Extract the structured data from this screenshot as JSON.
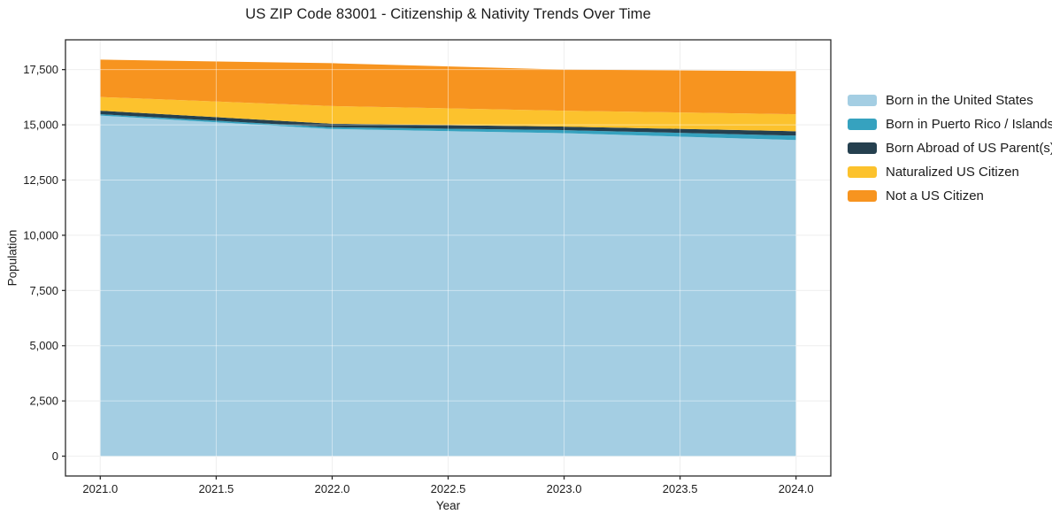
{
  "chart_data": {
    "type": "area",
    "stacked": true,
    "title": "US ZIP Code 83001 - Citizenship & Nativity Trends Over Time",
    "xlabel": "Year",
    "ylabel": "Population",
    "x": [
      2021,
      2022,
      2023,
      2024
    ],
    "series": [
      {
        "name": "Born in the United States",
        "color": "#a4cee3",
        "values": [
          15420,
          14810,
          14620,
          14310
        ]
      },
      {
        "name": "Born in Puerto Rico / Islands",
        "color": "#36a2bf",
        "values": [
          60,
          80,
          140,
          200
        ]
      },
      {
        "name": "Born Abroad of US Parent(s)",
        "color": "#25404f",
        "values": [
          160,
          160,
          160,
          200
        ]
      },
      {
        "name": "Naturalized US Citizen",
        "color": "#fcc22d",
        "values": [
          620,
          800,
          720,
          770
        ]
      },
      {
        "name": "Not a US Citizen",
        "color": "#f7941f",
        "values": [
          1690,
          1940,
          1860,
          1950
        ]
      }
    ],
    "totals": [
      17950,
      17790,
      17500,
      17430
    ],
    "xlim": [
      2020.85,
      2024.15
    ],
    "ylim": [
      -898,
      18848
    ],
    "xticks": [
      2021.0,
      2021.5,
      2022.0,
      2022.5,
      2023.0,
      2023.5,
      2024.0
    ],
    "xtick_labels": [
      "2021.0",
      "2021.5",
      "2022.0",
      "2022.5",
      "2023.0",
      "2023.5",
      "2024.0"
    ],
    "yticks": [
      0,
      2500,
      5000,
      7500,
      10000,
      12500,
      15000,
      17500
    ],
    "ytick_labels": [
      "0",
      "2,500",
      "5,000",
      "7,500",
      "10,000",
      "12,500",
      "15,000",
      "17,500"
    ],
    "grid": true,
    "legend_position": "outside-right"
  },
  "colors": {
    "background": "#ffffff",
    "spine": "#2b2b2b",
    "grid": "#e4e4e4",
    "grid_overlay": "rgba(255,255,255,0.45)",
    "tick": "#2b2b2b",
    "text": "#1c1c1c"
  }
}
